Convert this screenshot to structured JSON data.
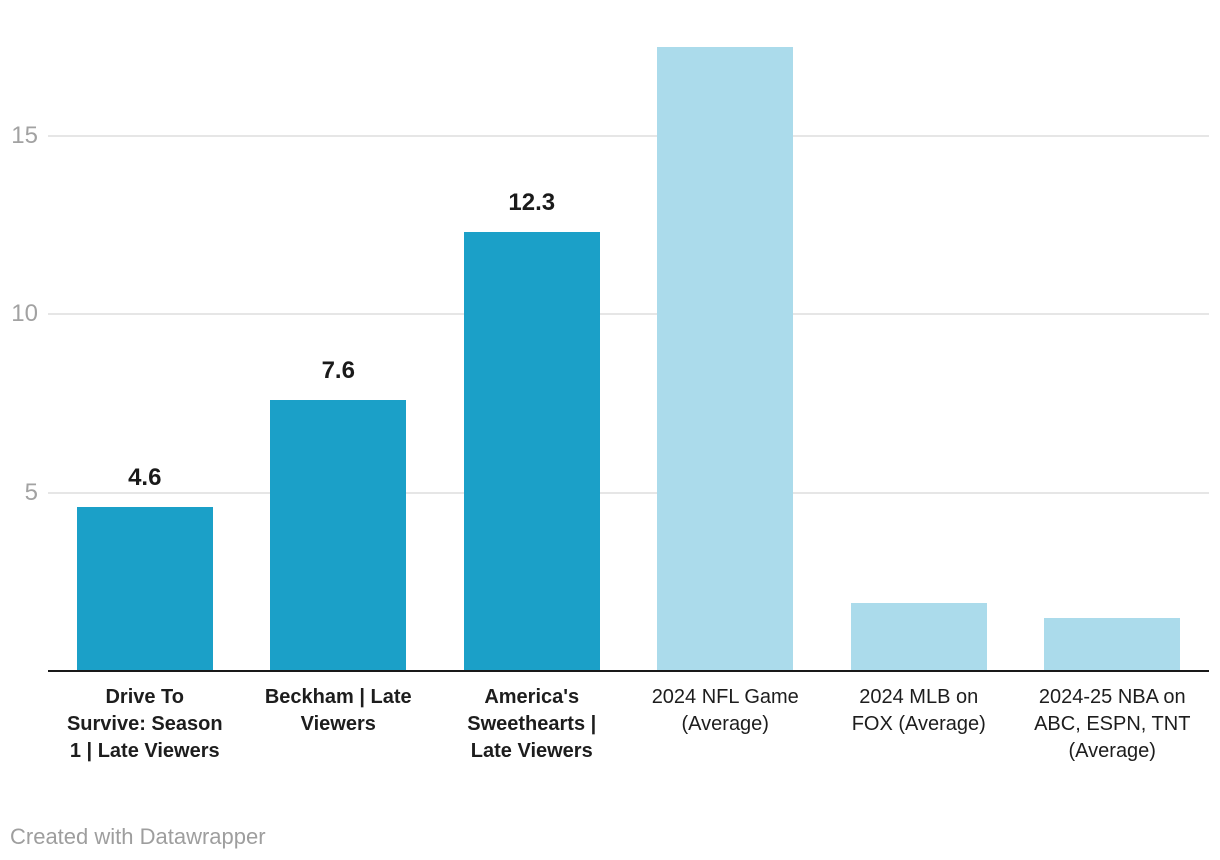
{
  "footer": {
    "credit": "Created with Datawrapper"
  },
  "colors": {
    "dark_bar": "#1ba0c8",
    "light_bar": "#abdbeb",
    "gridline": "#e6e6e6",
    "axis_line": "#191919",
    "tick_label": "#a2a2a2",
    "category_label": "#1d1d1d",
    "value_label": "#1a1a1a",
    "footer_text": "#9e9e9e"
  },
  "chart_data": {
    "type": "bar",
    "title": "",
    "xlabel": "",
    "ylabel": "",
    "grid": true,
    "legend": "none",
    "y_ticks": [
      5,
      10,
      15
    ],
    "ylim": [
      0,
      17.5
    ],
    "categories": [
      "Drive To Survive: Season 1 | Late Viewers",
      "Beckham | Late Viewers",
      "America's Sweethearts | Late Viewers",
      "2024 NFL Game (Average)",
      "2024 MLB on FOX (Average)",
      "2024-25 NBA on ABC, ESPN, TNT (Average)"
    ],
    "values": [
      4.6,
      7.6,
      12.3,
      17.5,
      1.9,
      1.5
    ],
    "bars": [
      {
        "category": "Drive To Survive: Season 1 | Late Viewers",
        "label": "Drive To\nSurvive: Season\n1 | Late Viewers",
        "value": 4.6,
        "value_label": "4.6",
        "group": "netflix-show",
        "bold_label": true
      },
      {
        "category": "Beckham | Late Viewers",
        "label": "Beckham | Late\nViewers",
        "value": 7.6,
        "value_label": "7.6",
        "group": "netflix-show",
        "bold_label": true
      },
      {
        "category": "America's Sweethearts | Late Viewers",
        "label": "America's\nSweethearts |\nLate Viewers",
        "value": 12.3,
        "value_label": "12.3",
        "group": "netflix-show",
        "bold_label": true
      },
      {
        "category": "2024 NFL Game (Average)",
        "label": "2024 NFL Game\n(Average)",
        "value": 17.5,
        "value_label": "",
        "group": "sports-average",
        "bold_label": false
      },
      {
        "category": "2024 MLB on FOX (Average)",
        "label": "2024 MLB on\nFOX (Average)",
        "value": 1.9,
        "value_label": "",
        "group": "sports-average",
        "bold_label": false
      },
      {
        "category": "2024-25 NBA on ABC, ESPN, TNT (Average)",
        "label": "2024-25 NBA on\nABC, ESPN, TNT\n(Average)",
        "value": 1.5,
        "value_label": "",
        "group": "sports-average",
        "bold_label": false
      }
    ]
  }
}
